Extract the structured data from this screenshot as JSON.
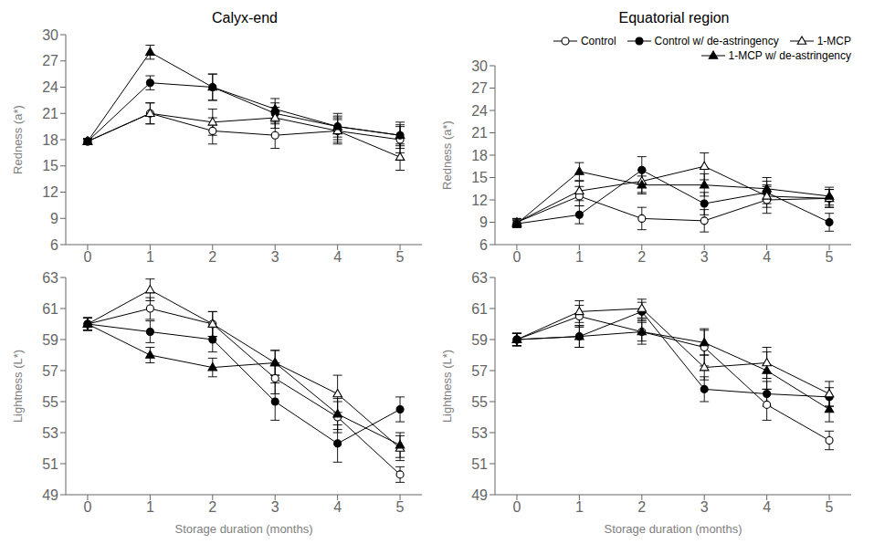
{
  "chart_data": [
    {
      "type": "line",
      "title": "Calyx-end",
      "ylabel": "Redness (a*)",
      "grid": false,
      "x": [
        0,
        1,
        2,
        3,
        4,
        5
      ],
      "xlim": [
        -0.35,
        5.35
      ],
      "xticks": [
        0,
        1,
        2,
        3,
        4,
        5
      ],
      "ylim": [
        6,
        30
      ],
      "yticks": [
        6,
        9,
        12,
        15,
        18,
        21,
        24,
        27,
        30
      ],
      "series": [
        {
          "name": "Control",
          "color": "black",
          "marker": "open_circle",
          "values": [
            17.8,
            21.0,
            19.0,
            18.5,
            19.0,
            18.0
          ],
          "yerr": [
            0.3,
            1.2,
            1.5,
            1.5,
            1.3,
            1.5
          ]
        },
        {
          "name": "Control w/ de-astringency",
          "color": "black",
          "marker": "filled_circle",
          "values": [
            17.8,
            24.5,
            24.0,
            21.0,
            19.5,
            18.5
          ],
          "yerr": [
            0.3,
            0.8,
            1.5,
            1.2,
            1.2,
            1.2
          ]
        },
        {
          "name": "1-MCP",
          "color": "black",
          "marker": "open_triangle",
          "values": [
            17.8,
            21.0,
            20.0,
            20.5,
            19.0,
            16.0
          ],
          "yerr": [
            0.3,
            1.2,
            1.5,
            1.2,
            1.5,
            1.5
          ]
        },
        {
          "name": "1-MCP w/ de-astringency",
          "color": "black",
          "marker": "filled_triangle",
          "values": [
            17.8,
            28.0,
            24.0,
            21.5,
            19.5,
            18.5
          ],
          "yerr": [
            0.3,
            0.8,
            1.5,
            1.2,
            1.5,
            1.5
          ]
        }
      ]
    },
    {
      "type": "line",
      "title": "Equatorial region",
      "ylabel": "Redness (a*)",
      "grid": false,
      "legend": "upper right",
      "x": [
        0,
        1,
        2,
        3,
        4,
        5
      ],
      "xlim": [
        -0.35,
        5.35
      ],
      "xticks": [
        0,
        1,
        2,
        3,
        4,
        5
      ],
      "ylim": [
        6,
        30
      ],
      "yticks": [
        6,
        9,
        12,
        15,
        18,
        21,
        24,
        27,
        30
      ],
      "series": [
        {
          "name": "Control",
          "color": "black",
          "marker": "open_circle",
          "values": [
            9.0,
            12.5,
            9.5,
            9.2,
            12.0,
            12.2
          ],
          "yerr": [
            0.5,
            1.3,
            1.5,
            1.5,
            1.8,
            1.2
          ]
        },
        {
          "name": "Control w/ de-astringency",
          "color": "black",
          "marker": "filled_circle",
          "values": [
            8.8,
            10.0,
            16.0,
            11.5,
            13.0,
            9.0
          ],
          "yerr": [
            0.5,
            1.2,
            1.8,
            1.5,
            1.5,
            1.2
          ]
        },
        {
          "name": "1-MCP",
          "color": "black",
          "marker": "open_triangle",
          "values": [
            9.0,
            13.2,
            14.5,
            16.5,
            12.5,
            12.2
          ],
          "yerr": [
            0.5,
            1.3,
            1.5,
            1.8,
            1.5,
            1.2
          ]
        },
        {
          "name": "1-MCP w/ de-astringency",
          "color": "black",
          "marker": "filled_triangle",
          "values": [
            8.8,
            15.8,
            14.0,
            14.0,
            13.5,
            12.5
          ],
          "yerr": [
            0.5,
            1.2,
            1.2,
            1.5,
            1.5,
            1.2
          ]
        }
      ]
    },
    {
      "type": "line",
      "ylabel": "Lightness (L*)",
      "xlabel": "Storage duration (months)",
      "grid": false,
      "x": [
        0,
        1,
        2,
        3,
        4,
        5
      ],
      "xlim": [
        -0.35,
        5.35
      ],
      "xticks": [
        0,
        1,
        2,
        3,
        4,
        5
      ],
      "ylim": [
        49,
        63
      ],
      "yticks": [
        49,
        51,
        53,
        55,
        57,
        59,
        61,
        63
      ],
      "series": [
        {
          "name": "Control",
          "color": "black",
          "marker": "open_circle",
          "values": [
            60.0,
            61.0,
            60.0,
            56.5,
            54.0,
            50.3
          ],
          "yerr": [
            0.4,
            0.7,
            0.8,
            1.0,
            1.0,
            0.5
          ]
        },
        {
          "name": "Control w/ de-astringency",
          "color": "black",
          "marker": "filled_circle",
          "values": [
            60.0,
            59.5,
            59.0,
            55.0,
            52.3,
            54.5
          ],
          "yerr": [
            0.4,
            0.7,
            0.8,
            1.2,
            1.2,
            0.8
          ]
        },
        {
          "name": "1-MCP",
          "color": "black",
          "marker": "open_triangle",
          "values": [
            60.0,
            62.2,
            60.0,
            57.5,
            55.5,
            52.0
          ],
          "yerr": [
            0.4,
            0.7,
            0.8,
            0.8,
            1.2,
            0.8
          ]
        },
        {
          "name": "1-MCP w/ de-astringency",
          "color": "black",
          "marker": "filled_triangle",
          "values": [
            60.0,
            58.0,
            57.2,
            57.5,
            54.2,
            52.2
          ],
          "yerr": [
            0.4,
            0.5,
            0.6,
            0.8,
            1.0,
            0.8
          ]
        }
      ]
    },
    {
      "type": "line",
      "ylabel": "Lightness (L*)",
      "xlabel": "Storage duration (months)",
      "grid": false,
      "x": [
        0,
        1,
        2,
        3,
        4,
        5
      ],
      "xlim": [
        -0.35,
        5.35
      ],
      "xticks": [
        0,
        1,
        2,
        3,
        4,
        5
      ],
      "ylim": [
        49,
        63
      ],
      "yticks": [
        49,
        51,
        53,
        55,
        57,
        59,
        61,
        63
      ],
      "series": [
        {
          "name": "Control",
          "color": "black",
          "marker": "open_circle",
          "values": [
            59.0,
            60.5,
            59.5,
            58.5,
            54.8,
            52.5
          ],
          "yerr": [
            0.4,
            0.7,
            0.8,
            1.2,
            1.0,
            0.6
          ]
        },
        {
          "name": "Control w/ de-astringency",
          "color": "black",
          "marker": "filled_circle",
          "values": [
            59.0,
            59.2,
            60.8,
            55.8,
            55.5,
            55.3
          ],
          "yerr": [
            0.4,
            0.7,
            0.6,
            0.8,
            0.8,
            0.6
          ]
        },
        {
          "name": "1-MCP",
          "color": "black",
          "marker": "open_triangle",
          "values": [
            59.0,
            60.8,
            61.0,
            57.2,
            57.5,
            55.5
          ],
          "yerr": [
            0.4,
            0.7,
            0.6,
            0.8,
            1.0,
            0.8
          ]
        },
        {
          "name": "1-MCP w/ de-astringency",
          "color": "black",
          "marker": "filled_triangle",
          "values": [
            59.0,
            59.2,
            59.5,
            58.8,
            57.0,
            54.5
          ],
          "yerr": [
            0.4,
            0.7,
            0.6,
            0.8,
            1.2,
            0.8
          ]
        }
      ]
    }
  ]
}
